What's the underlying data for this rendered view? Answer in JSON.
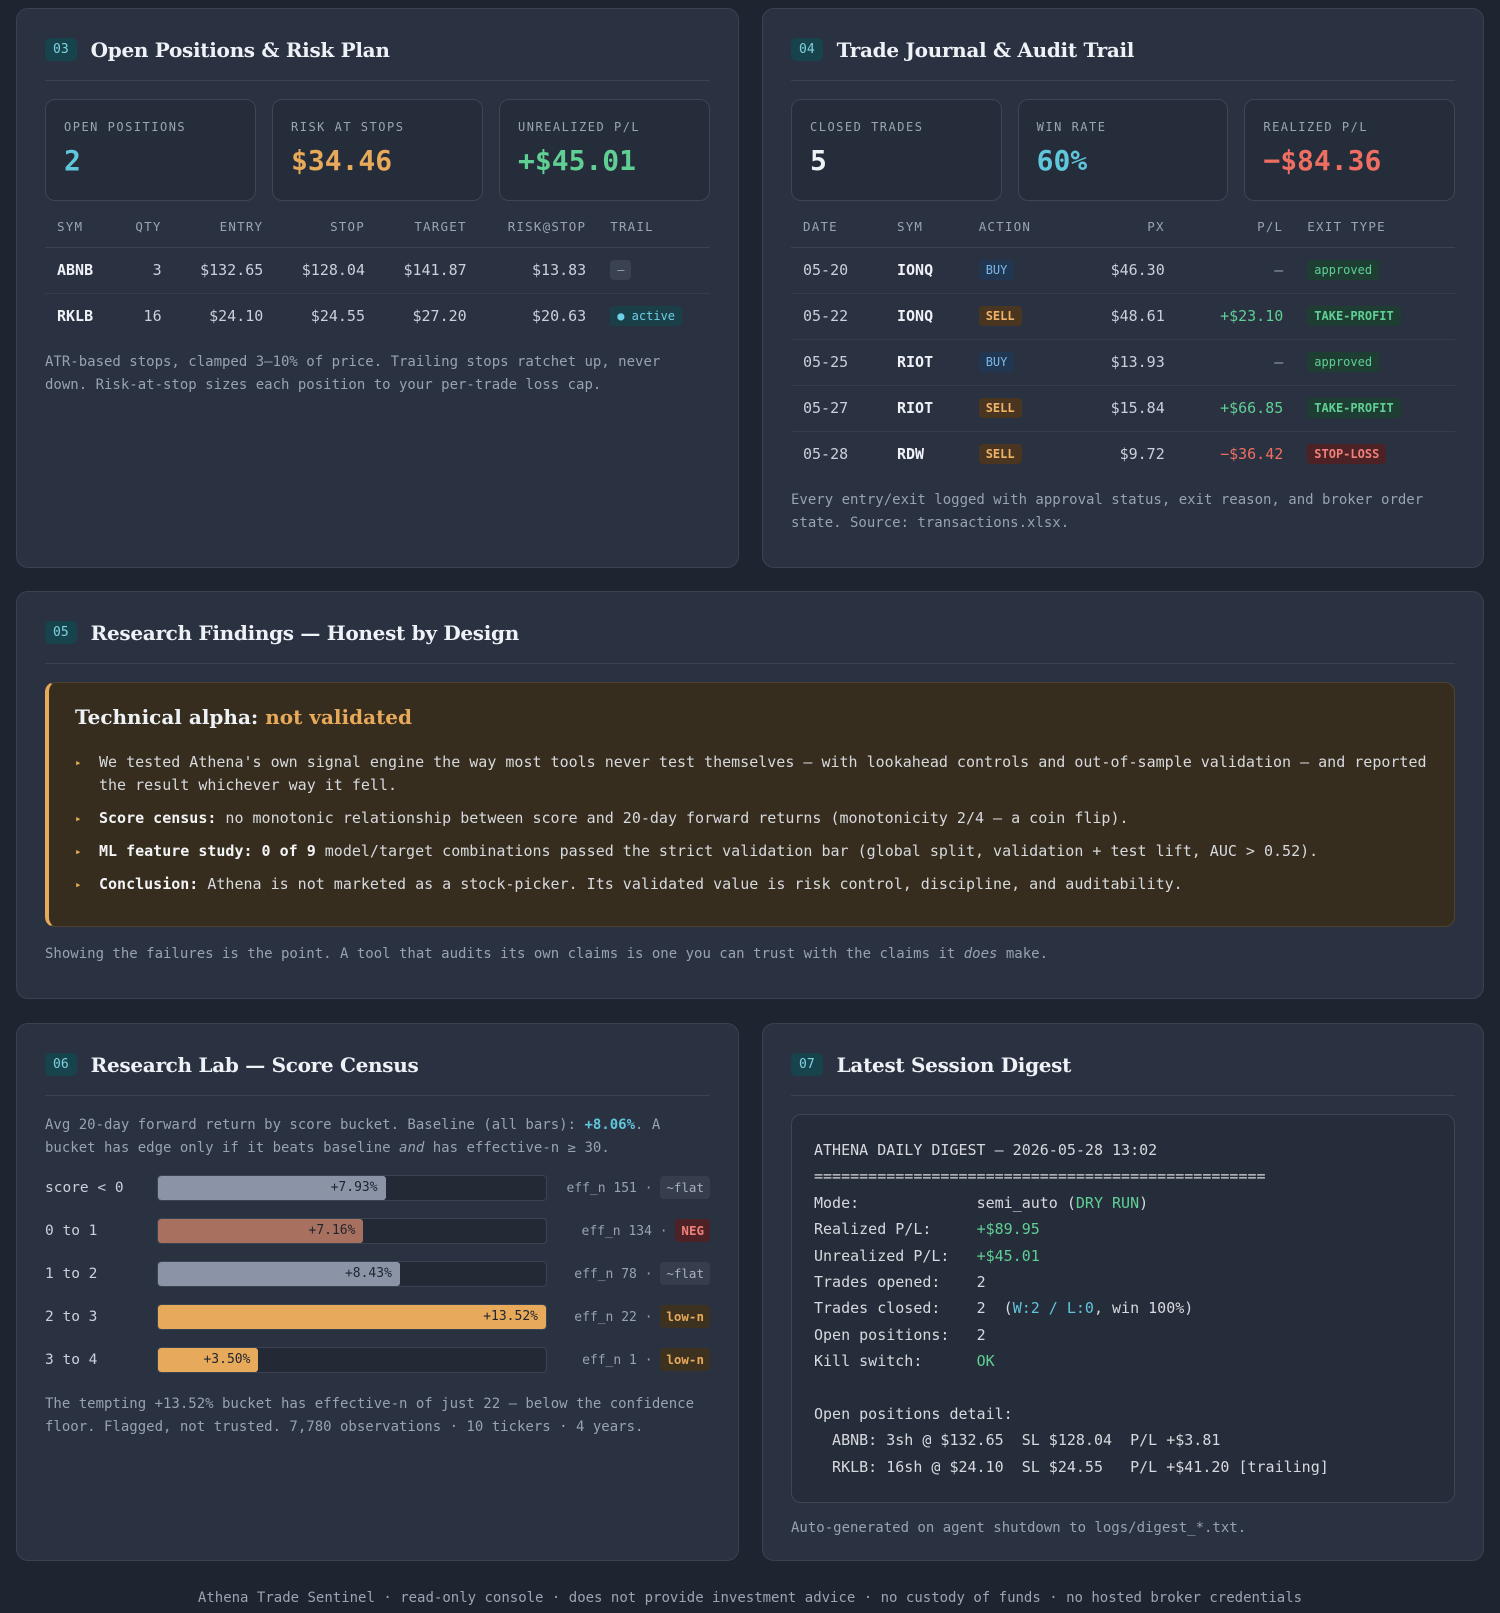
{
  "positions": {
    "num": "03",
    "title": "Open Positions & Risk Plan",
    "kpis": [
      {
        "label": "OPEN POSITIONS",
        "value": "2"
      },
      {
        "label": "RISK AT STOPS",
        "value": "$34.46"
      },
      {
        "label": "UNREALIZED P/L",
        "value": "+$45.01"
      }
    ],
    "columns": [
      "SYM",
      "QTY",
      "ENTRY",
      "STOP",
      "TARGET",
      "RISK@STOP",
      "TRAIL"
    ],
    "rows": [
      {
        "sym": "ABNB",
        "qty": "3",
        "entry": "$132.65",
        "stop": "$128.04",
        "target": "$141.87",
        "risk": "$13.83",
        "trail": "—"
      },
      {
        "sym": "RKLB",
        "qty": "16",
        "entry": "$24.10",
        "stop": "$24.55",
        "target": "$27.20",
        "risk": "$20.63",
        "trail": "● active"
      }
    ],
    "note": "ATR-based stops, clamped 3–10% of price. Trailing stops ratchet up, never down. Risk-at-stop sizes each position to your per-trade loss cap."
  },
  "journal": {
    "num": "04",
    "title": "Trade Journal & Audit Trail",
    "kpis": [
      {
        "label": "CLOSED TRADES",
        "value": "5"
      },
      {
        "label": "WIN RATE",
        "value": "60%"
      },
      {
        "label": "REALIZED P/L",
        "value": "−$84.36"
      }
    ],
    "columns": [
      "DATE",
      "SYM",
      "ACTION",
      "PX",
      "P/L",
      "EXIT TYPE"
    ],
    "rows": [
      {
        "date": "05-20",
        "sym": "IONQ",
        "action": "BUY",
        "px": "$46.30",
        "pl": "—",
        "exit": "approved"
      },
      {
        "date": "05-22",
        "sym": "IONQ",
        "action": "SELL",
        "px": "$48.61",
        "pl": "+$23.10",
        "exit": "TAKE-PROFIT"
      },
      {
        "date": "05-25",
        "sym": "RIOT",
        "action": "BUY",
        "px": "$13.93",
        "pl": "—",
        "exit": "approved"
      },
      {
        "date": "05-27",
        "sym": "RIOT",
        "action": "SELL",
        "px": "$15.84",
        "pl": "+$66.85",
        "exit": "TAKE-PROFIT"
      },
      {
        "date": "05-28",
        "sym": "RDW",
        "action": "SELL",
        "px": "$9.72",
        "pl": "−$36.42",
        "exit": "STOP-LOSS"
      }
    ],
    "note": "Every entry/exit logged with approval status, exit reason, and broker order state. Source: transactions.xlsx."
  },
  "findings": {
    "num": "05",
    "title": "Research Findings — Honest by Design",
    "alert_title_prefix": "Technical alpha: ",
    "alert_title_highlight": "not validated",
    "bullets": [
      {
        "bold": "",
        "text": "We tested Athena's own signal engine the way most tools never test themselves — with lookahead controls and out-of-sample validation — and reported the result whichever way it fell."
      },
      {
        "bold": "Score census:",
        "text": " no monotonic relationship between score and 20-day forward returns (monotonicity 2/4 — a coin flip)."
      },
      {
        "bold": "ML feature study: 0 of 9",
        "text": " model/target combinations passed the strict validation bar (global split, validation + test lift, AUC > 0.52)."
      },
      {
        "bold": "Conclusion:",
        "text": " Athena is not marketed as a stock-picker. Its validated value is risk control, discipline, and auditability."
      }
    ],
    "note_prefix": "Showing the failures is the point. A tool that audits its own claims is one you can trust with the claims it ",
    "note_em": "does",
    "note_suffix": " make."
  },
  "lab": {
    "num": "06",
    "title": "Research Lab — Score Census",
    "intro_a": "Avg 20-day forward return by score bucket. Baseline (all bars): ",
    "intro_baseline": "+8.06%",
    "intro_b": ". A bucket has edge only if it beats baseline ",
    "intro_em": "and",
    "intro_c": " has effective-n ≥ 30.",
    "buckets": [
      {
        "label": "score < 0",
        "value": 7.93,
        "value_label": "+7.93%",
        "eff": "eff_n 151 ·",
        "tag": "~flat",
        "tag_type": "flat",
        "color": "#8a94a6"
      },
      {
        "label": "0 to 1",
        "value": 7.16,
        "value_label": "+7.16%",
        "eff": "eff_n 134 ·",
        "tag": "NEG",
        "tag_type": "neg",
        "color": "#a8705e"
      },
      {
        "label": "1 to 2",
        "value": 8.43,
        "value_label": "+8.43%",
        "eff": "eff_n 78 ·",
        "tag": "~flat",
        "tag_type": "flat",
        "color": "#8a94a6"
      },
      {
        "label": "2 to 3",
        "value": 13.52,
        "value_label": "+13.52%",
        "eff": "eff_n 22 ·",
        "tag": "low-n",
        "tag_type": "low",
        "color": "#e7a95a"
      },
      {
        "label": "3 to 4",
        "value": 3.5,
        "value_label": "+3.50%",
        "eff": "eff_n 1 ·",
        "tag": "low-n",
        "tag_type": "low",
        "color": "#e7a95a"
      }
    ],
    "note": "The tempting +13.52% bucket has effective-n of just 22 — below the confidence floor. Flagged, not trusted. 7,780 observations · 10 tickers · 4 years."
  },
  "digest": {
    "num": "07",
    "title": "Latest Session Digest",
    "header": "ATHENA DAILY DIGEST — 2026-05-28 13:02",
    "rule": "==================================================",
    "lines": {
      "mode_k": "Mode:             ",
      "mode_v": "semi_auto (",
      "mode_dry": "DRY RUN",
      "mode_end": ")",
      "real_k": "Realized P/L:     ",
      "real_v": "+$89.95",
      "unreal_k": "Unrealized P/L:   ",
      "unreal_v": "+$45.01",
      "opened_k": "Trades opened:    ",
      "opened_v": "2",
      "closed_k": "Trades closed:    ",
      "closed_v": "2  (",
      "closed_wl": "W:2 / L:0",
      "closed_end": ", win 100%)",
      "open_k": "Open positions:   ",
      "open_v": "2",
      "kill_k": "Kill switch:      ",
      "kill_v": "OK",
      "detail_h": "Open positions detail:",
      "detail_1": "  ABNB: 3sh @ $132.65  SL $128.04  P/L +$3.81",
      "detail_2": "  RKLB: 16sh @ $24.10  SL $24.55   P/L +$41.20 [trailing]"
    },
    "note": "Auto-generated on agent shutdown to logs/digest_*.txt."
  },
  "footer": "Athena Trade Sentinel · read-only console · does not provide investment advice · no custody of funds · no hosted broker credentials",
  "colors": {
    "accent": "#5fc6dc",
    "gold": "#e7a95a",
    "green": "#5fcf94",
    "red": "#ee6e62"
  }
}
